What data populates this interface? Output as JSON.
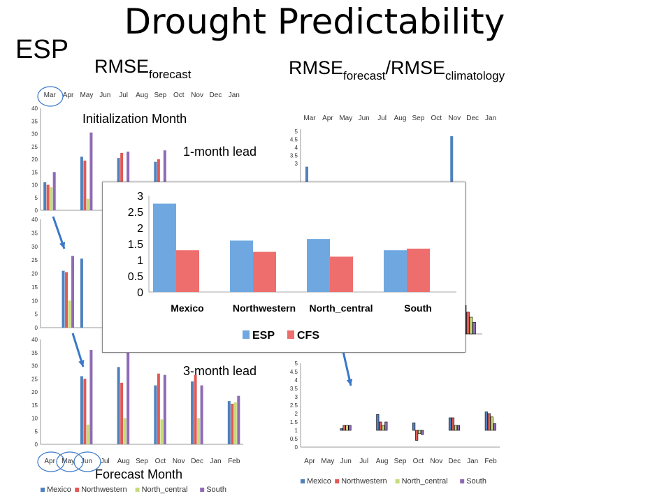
{
  "title": "Drought Predictability",
  "esp_label": "ESP",
  "rmse_forecast": {
    "base": "RMSE",
    "sub": "forecast"
  },
  "rmse_ratio": {
    "base1": "RMSE",
    "sub1": "forecast",
    "slash": "/",
    "base2": "RMSE",
    "sub2": "climatology"
  },
  "annotations": {
    "init_month": "Initialization Month",
    "lead_1": "1-month lead",
    "lead_3": "3-month lead",
    "forecast_month": "Forecast Month"
  },
  "colors": {
    "mexico": "#4f81bd",
    "northwestern": "#e05a55",
    "north_central": "#c6dc7a",
    "south": "#8f6ab6",
    "arrow": "#3a78c8"
  },
  "chart_data": [
    {
      "id": "left-1",
      "type": "bar",
      "categories": [
        "Mar",
        "Apr",
        "May",
        "Jun",
        "Jul",
        "Aug",
        "Sep",
        "Oct",
        "Nov",
        "Dec",
        "Jan"
      ],
      "ylim": [
        0,
        40
      ],
      "yticks": [
        0,
        5,
        10,
        15,
        20,
        25,
        30,
        35,
        40
      ],
      "series": [
        {
          "name": "Mexico",
          "values": [
            11,
            null,
            21,
            null,
            20.5,
            null,
            19,
            null,
            null,
            null,
            null
          ]
        },
        {
          "name": "Northwestern",
          "values": [
            10,
            null,
            19.5,
            null,
            22.5,
            null,
            20,
            null,
            null,
            null,
            null
          ]
        },
        {
          "name": "North_central",
          "values": [
            9,
            null,
            4.5,
            null,
            null,
            null,
            null,
            null,
            null,
            null,
            null
          ]
        },
        {
          "name": "South",
          "values": [
            15,
            null,
            30.5,
            null,
            23,
            null,
            23.5,
            null,
            null,
            null,
            null
          ]
        }
      ]
    },
    {
      "id": "left-2",
      "type": "bar",
      "ylim": [
        0,
        40
      ],
      "yticks": [
        0,
        5,
        10,
        15,
        20,
        25,
        30,
        35,
        40
      ],
      "series": [
        {
          "name": "Mexico",
          "values": [
            null,
            21,
            25.5
          ]
        },
        {
          "name": "Northwestern",
          "values": [
            null,
            20.5,
            null
          ]
        },
        {
          "name": "North_central",
          "values": [
            null,
            10,
            null
          ]
        },
        {
          "name": "South",
          "values": [
            null,
            26.5,
            null
          ]
        }
      ]
    },
    {
      "id": "left-3",
      "type": "bar",
      "categories": [
        "Apr",
        "May",
        "Jun",
        "Jul",
        "Aug",
        "Sep",
        "Oct",
        "Nov",
        "Dec",
        "Jan",
        "Feb"
      ],
      "ylim": [
        0,
        40
      ],
      "yticks": [
        0,
        5,
        10,
        15,
        20,
        25,
        30,
        35,
        40
      ],
      "legend": [
        "Mexico",
        "Northwestern",
        "North_central",
        "South"
      ],
      "series": [
        {
          "name": "Mexico",
          "values": [
            null,
            null,
            26,
            null,
            29.5,
            null,
            22.5,
            null,
            24,
            null,
            16.5
          ]
        },
        {
          "name": "Northwestern",
          "values": [
            null,
            null,
            25,
            null,
            23.5,
            null,
            27,
            null,
            26.5,
            null,
            15.5
          ]
        },
        {
          "name": "North_central",
          "values": [
            null,
            null,
            7.5,
            null,
            10,
            null,
            9.5,
            null,
            10,
            null,
            16
          ]
        },
        {
          "name": "South",
          "values": [
            null,
            null,
            36,
            null,
            35,
            null,
            26.5,
            null,
            22.5,
            null,
            18.5
          ]
        }
      ]
    },
    {
      "id": "right-1",
      "type": "bar",
      "categories": [
        "Mar",
        "Apr",
        "May",
        "Jun",
        "Jul",
        "Aug",
        "Sep",
        "Oct",
        "Nov",
        "Dec",
        "Jan"
      ],
      "ylim": [
        0,
        5
      ],
      "yticks": [
        3,
        3.5,
        4,
        4.5,
        5
      ],
      "series": [
        {
          "name": "Mexico",
          "values": [
            2.8,
            null,
            null,
            null,
            null,
            null,
            null,
            null,
            4.7,
            null,
            null
          ]
        }
      ]
    },
    {
      "id": "right-2",
      "type": "bar",
      "series": [
        {
          "name": "Mexico",
          "values": [
            1.7
          ]
        },
        {
          "name": "Northwestern",
          "values": [
            1.3
          ]
        },
        {
          "name": "North_central",
          "values": [
            1.0
          ]
        },
        {
          "name": "South",
          "values": [
            0.7
          ]
        }
      ]
    },
    {
      "id": "right-3",
      "type": "bar",
      "categories": [
        "Apr",
        "May",
        "Jun",
        "Jul",
        "Aug",
        "Sep",
        "Oct",
        "Nov",
        "Dec",
        "Jan",
        "Feb"
      ],
      "ylim": [
        0,
        5
      ],
      "yticks": [
        0,
        0.5,
        1,
        1.5,
        2,
        2.5,
        3,
        3.5,
        4,
        4.5,
        5
      ],
      "legend": [
        "Mexico",
        "Northwestern",
        "North_central",
        "South"
      ],
      "series": [
        {
          "name": "Mexico",
          "values": [
            null,
            null,
            1.1,
            null,
            1.95,
            null,
            1.45,
            null,
            1.75,
            null,
            2.1
          ]
        },
        {
          "name": "Northwestern",
          "values": [
            null,
            null,
            1.3,
            null,
            1.5,
            null,
            0.4,
            null,
            1.75,
            null,
            2.0
          ]
        },
        {
          "name": "North_central",
          "values": [
            null,
            null,
            1.3,
            null,
            1.3,
            null,
            0.8,
            null,
            1.3,
            null,
            1.8
          ]
        },
        {
          "name": "South",
          "values": [
            null,
            null,
            1.3,
            null,
            1.5,
            null,
            0.75,
            null,
            1.3,
            null,
            1.4
          ]
        }
      ]
    },
    {
      "id": "popup",
      "type": "bar",
      "categories": [
        "Mexico",
        "Northwestern",
        "North_central",
        "South"
      ],
      "ylim": [
        0,
        3
      ],
      "yticks": [
        "0",
        "0.5",
        "1",
        "1.5",
        "2",
        "2.5",
        "3"
      ],
      "legend": [
        "ESP",
        "CFS"
      ],
      "series": [
        {
          "name": "ESP",
          "values": [
            2.75,
            1.6,
            1.65,
            1.3
          ]
        },
        {
          "name": "CFS",
          "values": [
            1.3,
            1.25,
            1.1,
            1.35
          ]
        }
      ]
    }
  ]
}
